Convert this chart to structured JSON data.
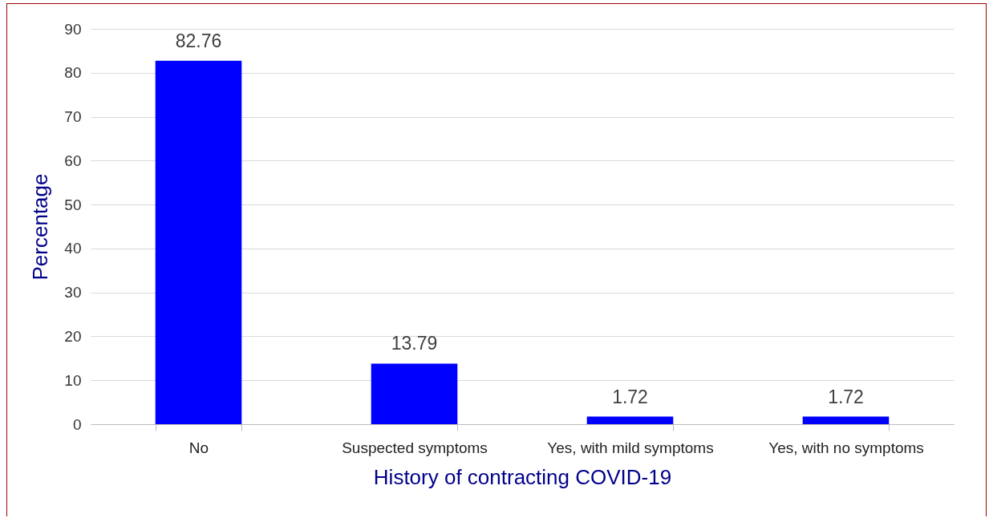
{
  "chart_data": {
    "type": "bar",
    "xlabel": "History of contracting COVID-19",
    "ylabel": "Percentage",
    "categories": [
      "No",
      "Suspected symptoms",
      "Yes, with mild symptoms",
      "Yes, with no symptoms"
    ],
    "values": [
      82.76,
      13.79,
      1.72,
      1.72
    ],
    "color": "#0000ff",
    "ylim": [
      0,
      90
    ],
    "yticks": [
      0,
      10,
      20,
      30,
      40,
      50,
      60,
      70,
      80,
      90
    ],
    "grid": "y",
    "data_labels": true
  }
}
